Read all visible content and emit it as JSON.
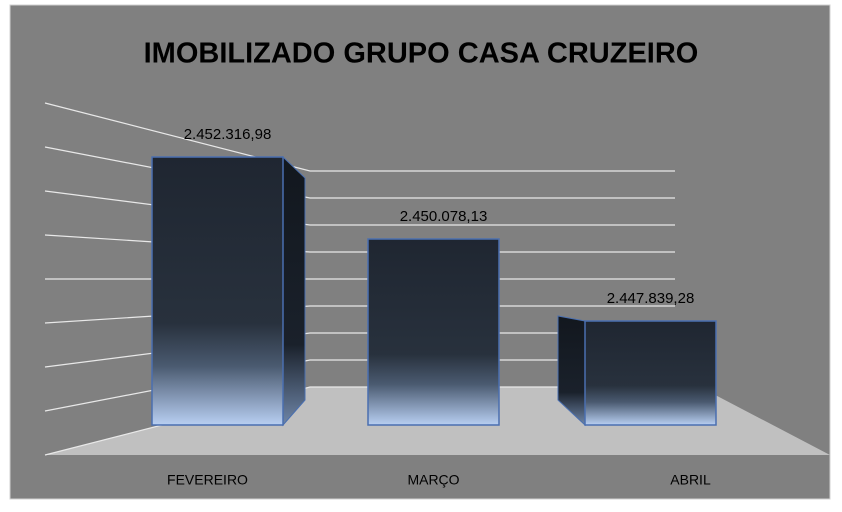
{
  "chart_data": {
    "type": "bar3d",
    "title": "IMOBILIZADO GRUPO CASA CRUZEIRO",
    "categories": [
      "FEVEREIRO",
      "MARÇO",
      "ABRIL"
    ],
    "values": [
      2452316.98,
      2450078.13,
      2447839.28
    ],
    "value_labels": [
      "2.452.316,98",
      "2.450.078,13",
      "2.447.839,28"
    ],
    "color": "#1f2631",
    "ylim": [
      2445000,
      2453000
    ],
    "yticks": [
      2445000,
      2446000,
      2447000,
      2448000,
      2449000,
      2450000,
      2451000,
      2452000,
      2453000
    ],
    "grid": true
  }
}
